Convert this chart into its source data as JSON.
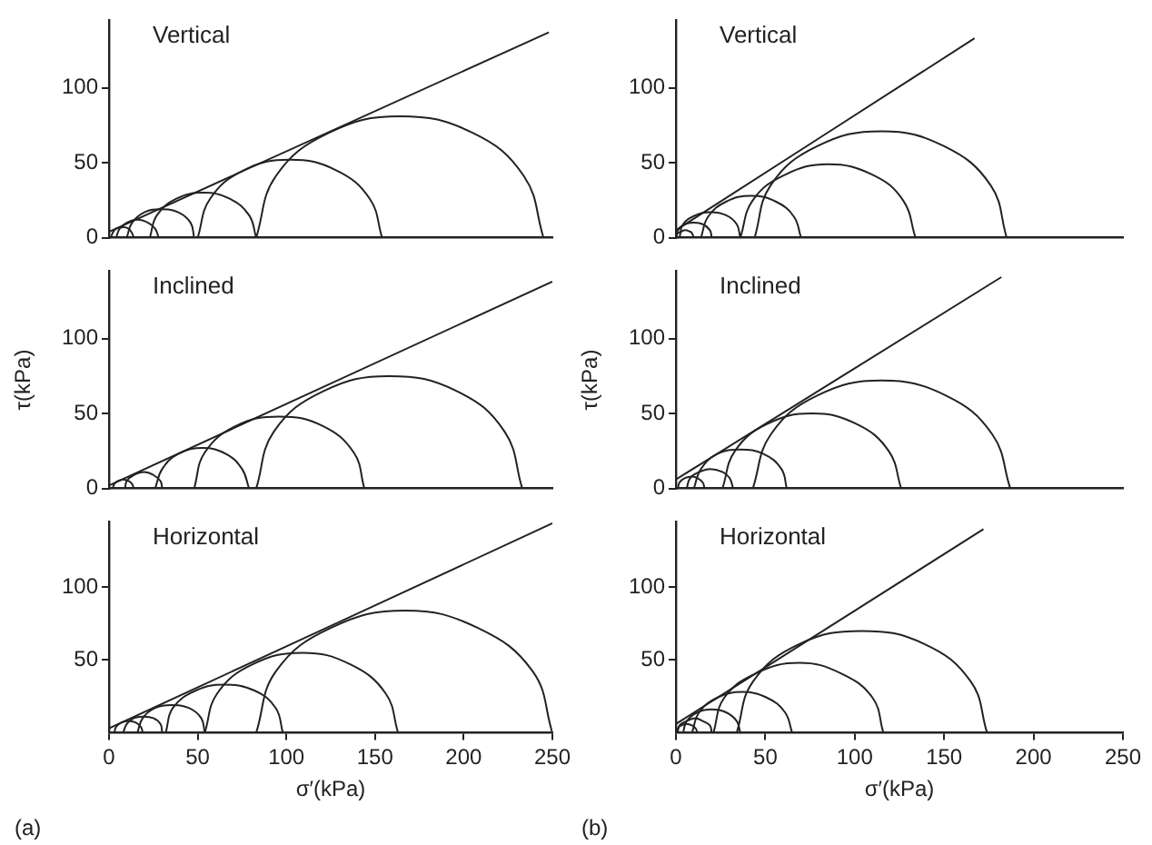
{
  "chart_data": [
    {
      "type": "line",
      "annotations": [
        "Vertical"
      ],
      "xlim": [
        0,
        250
      ],
      "ylim": [
        0,
        145
      ],
      "yticks": [
        0,
        50,
        100
      ],
      "tick_labels": "y",
      "grid": false,
      "marker": "none",
      "line_style": "solid",
      "series": [
        {
          "x": [
            1,
            2,
            4,
            8,
            11,
            13,
            14
          ],
          "values": [
            0,
            3,
            6,
            7,
            6,
            3,
            0
          ],
          "color": "#222222"
        },
        {
          "x": [
            4,
            6,
            10,
            16,
            22,
            26,
            28
          ],
          "values": [
            0,
            6,
            10,
            12,
            10,
            6,
            0
          ],
          "color": "#222222"
        },
        {
          "x": [
            10,
            13,
            20,
            29,
            39,
            46,
            48
          ],
          "values": [
            0,
            10,
            17,
            19,
            17,
            10,
            0
          ],
          "color": "#222222"
        },
        {
          "x": [
            23,
            27,
            38,
            53,
            68,
            79,
            83
          ],
          "values": [
            0,
            15,
            26,
            30,
            26,
            15,
            0
          ],
          "color": "#222222"
        },
        {
          "x": [
            50,
            57,
            76,
            102,
            128,
            147,
            154
          ],
          "values": [
            0,
            26,
            45,
            52,
            45,
            26,
            0
          ],
          "color": "#222222"
        },
        {
          "x": [
            83,
            94,
            124,
            164,
            205,
            234,
            245
          ],
          "values": [
            0,
            41,
            70,
            81,
            70,
            41,
            0
          ],
          "color": "#222222"
        },
        {
          "x": [
            0,
            248
          ],
          "values": [
            4,
            137
          ],
          "color": "#222222"
        }
      ]
    },
    {
      "type": "line",
      "annotations": [
        "Inclined"
      ],
      "ylabel": "τ(kPa)",
      "xlim": [
        0,
        250
      ],
      "ylim": [
        0,
        145
      ],
      "yticks": [
        0,
        50,
        100
      ],
      "tick_labels": "y",
      "grid": false,
      "marker": "none",
      "line_style": "solid",
      "series": [
        {
          "x": [
            2,
            3,
            5,
            8,
            11,
            13,
            14
          ],
          "values": [
            0,
            3,
            5,
            6,
            5,
            3,
            0
          ],
          "color": "#222222"
        },
        {
          "x": [
            9,
            10,
            14,
            20,
            25,
            29,
            30
          ],
          "values": [
            0,
            5,
            9,
            11,
            9,
            5,
            0
          ],
          "color": "#222222"
        },
        {
          "x": [
            26,
            30,
            39,
            53,
            66,
            75,
            79
          ],
          "values": [
            0,
            13,
            23,
            27,
            23,
            13,
            0
          ],
          "color": "#222222"
        },
        {
          "x": [
            48,
            54,
            72,
            96,
            120,
            138,
            144
          ],
          "values": [
            0,
            24,
            42,
            48,
            42,
            24,
            0
          ],
          "color": "#222222"
        },
        {
          "x": [
            83,
            93,
            121,
            158,
            196,
            223,
            233
          ],
          "values": [
            0,
            38,
            65,
            75,
            65,
            38,
            0
          ],
          "color": "#222222"
        },
        {
          "x": [
            0,
            250
          ],
          "values": [
            2,
            138
          ],
          "color": "#222222"
        }
      ]
    },
    {
      "type": "line",
      "annotations": [
        "Horizontal",
        "(a)"
      ],
      "xlabel": "σ′(kPa)",
      "xlim": [
        0,
        250
      ],
      "ylim": [
        0,
        145
      ],
      "xticks": [
        0,
        50,
        100,
        150,
        200,
        250
      ],
      "yticks": [
        50,
        100
      ],
      "grid": false,
      "marker": "none",
      "line_style": "solid",
      "series": [
        {
          "x": [
            3,
            4,
            7,
            11,
            15,
            18,
            19
          ],
          "values": [
            0,
            4,
            7,
            8,
            7,
            4,
            0
          ],
          "color": "#222222"
        },
        {
          "x": [
            8,
            10,
            14,
            19,
            25,
            29,
            30
          ],
          "values": [
            0,
            6,
            10,
            11,
            10,
            6,
            0
          ],
          "color": "#222222"
        },
        {
          "x": [
            16,
            19,
            26,
            35,
            45,
            52,
            54
          ],
          "values": [
            0,
            10,
            17,
            19,
            17,
            10,
            0
          ],
          "color": "#222222"
        },
        {
          "x": [
            32,
            36,
            49,
            65,
            82,
            94,
            98
          ],
          "values": [
            0,
            17,
            29,
            33,
            29,
            17,
            0
          ],
          "color": "#222222"
        },
        {
          "x": [
            54,
            61,
            81,
            109,
            136,
            156,
            163
          ],
          "values": [
            0,
            27,
            47,
            55,
            47,
            27,
            0
          ],
          "color": "#222222"
        },
        {
          "x": [
            83,
            94,
            125,
            167,
            208,
            239,
            250
          ],
          "values": [
            0,
            42,
            72,
            84,
            72,
            42,
            0
          ],
          "color": "#222222"
        },
        {
          "x": [
            0,
            250
          ],
          "values": [
            3,
            144
          ],
          "color": "#222222"
        }
      ]
    },
    {
      "type": "line",
      "annotations": [
        "Vertical"
      ],
      "xlim": [
        0,
        250
      ],
      "ylim": [
        0,
        145
      ],
      "yticks": [
        0,
        50,
        100
      ],
      "tick_labels": "y",
      "grid": false,
      "marker": "none",
      "line_style": "solid",
      "series": [
        {
          "x": [
            0,
            1,
            3,
            5,
            8,
            9,
            10
          ],
          "values": [
            0,
            3,
            4,
            5,
            4,
            3,
            0
          ],
          "color": "#222222"
        },
        {
          "x": [
            0,
            1,
            5,
            10,
            15,
            19,
            20
          ],
          "values": [
            0,
            5,
            9,
            10,
            9,
            5,
            0
          ],
          "color": "#222222"
        },
        {
          "x": [
            2,
            4,
            11,
            19,
            28,
            34,
            36
          ],
          "values": [
            0,
            9,
            15,
            17,
            15,
            9,
            0
          ],
          "color": "#222222"
        },
        {
          "x": [
            14,
            18,
            28,
            42,
            56,
            66,
            70
          ],
          "values": [
            0,
            14,
            24,
            28,
            24,
            14,
            0
          ],
          "color": "#222222"
        },
        {
          "x": [
            36,
            43,
            61,
            85,
            110,
            127,
            134
          ],
          "values": [
            0,
            25,
            42,
            49,
            42,
            25,
            0
          ],
          "color": "#222222"
        },
        {
          "x": [
            44,
            53,
            79,
            115,
            150,
            176,
            185
          ],
          "values": [
            0,
            35,
            61,
            71,
            61,
            35,
            0
          ],
          "color": "#222222"
        },
        {
          "x": [
            0,
            167
          ],
          "values": [
            5,
            133
          ],
          "color": "#222222"
        }
      ]
    },
    {
      "type": "line",
      "annotations": [
        "Inclined"
      ],
      "ylabel": "τ(kPa)",
      "xlim": [
        0,
        250
      ],
      "ylim": [
        0,
        145
      ],
      "yticks": [
        0,
        50,
        100
      ],
      "tick_labels": "y",
      "grid": false,
      "marker": "none",
      "line_style": "solid",
      "series": [
        {
          "x": [
            1,
            2,
            5,
            9,
            12,
            15,
            16
          ],
          "values": [
            0,
            4,
            7,
            8,
            7,
            4,
            0
          ],
          "color": "#222222"
        },
        {
          "x": [
            6,
            8,
            13,
            19,
            26,
            30,
            32
          ],
          "values": [
            0,
            7,
            11,
            13,
            11,
            7,
            0
          ],
          "color": "#222222"
        },
        {
          "x": [
            10,
            14,
            23,
            36,
            49,
            59,
            62
          ],
          "values": [
            0,
            13,
            23,
            26,
            23,
            13,
            0
          ],
          "color": "#222222"
        },
        {
          "x": [
            26,
            33,
            51,
            76,
            101,
            119,
            126
          ],
          "values": [
            0,
            25,
            43,
            50,
            43,
            25,
            0
          ],
          "color": "#222222"
        },
        {
          "x": [
            43,
            53,
            79,
            115,
            151,
            177,
            187
          ],
          "values": [
            0,
            36,
            62,
            72,
            62,
            36,
            0
          ],
          "color": "#222222"
        },
        {
          "x": [
            0,
            182
          ],
          "values": [
            6,
            141
          ],
          "color": "#222222"
        }
      ]
    },
    {
      "type": "line",
      "annotations": [
        "Horizontal",
        "(b)"
      ],
      "xlabel": "σ′(kPa)",
      "xlim": [
        0,
        250
      ],
      "ylim": [
        0,
        145
      ],
      "xticks": [
        0,
        50,
        100,
        150,
        200,
        250
      ],
      "yticks": [
        50,
        100
      ],
      "grid": false,
      "marker": "none",
      "line_style": "solid",
      "series": [
        {
          "x": [
            0,
            1,
            3,
            6,
            9,
            11,
            12
          ],
          "values": [
            0,
            3,
            5,
            6,
            5,
            3,
            0
          ],
          "color": "#222222"
        },
        {
          "x": [
            1,
            2,
            6,
            11,
            15,
            19,
            20
          ],
          "values": [
            0,
            5,
            8,
            10,
            8,
            5,
            0
          ],
          "color": "#222222"
        },
        {
          "x": [
            4,
            6,
            12,
            20,
            28,
            34,
            36
          ],
          "values": [
            0,
            8,
            14,
            16,
            14,
            8,
            0
          ],
          "color": "#222222"
        },
        {
          "x": [
            9,
            13,
            23,
            37,
            51,
            61,
            65
          ],
          "values": [
            0,
            14,
            24,
            28,
            24,
            14,
            0
          ],
          "color": "#222222"
        },
        {
          "x": [
            21,
            27,
            45,
            69,
            92,
            110,
            116
          ],
          "values": [
            0,
            24,
            41,
            48,
            41,
            24,
            0
          ],
          "color": "#222222"
        },
        {
          "x": [
            34,
            43,
            69,
            104,
            139,
            165,
            174
          ],
          "values": [
            0,
            35,
            61,
            70,
            61,
            35,
            0
          ],
          "color": "#222222"
        },
        {
          "x": [
            0,
            172
          ],
          "values": [
            6,
            140
          ],
          "color": "#222222"
        }
      ]
    }
  ]
}
